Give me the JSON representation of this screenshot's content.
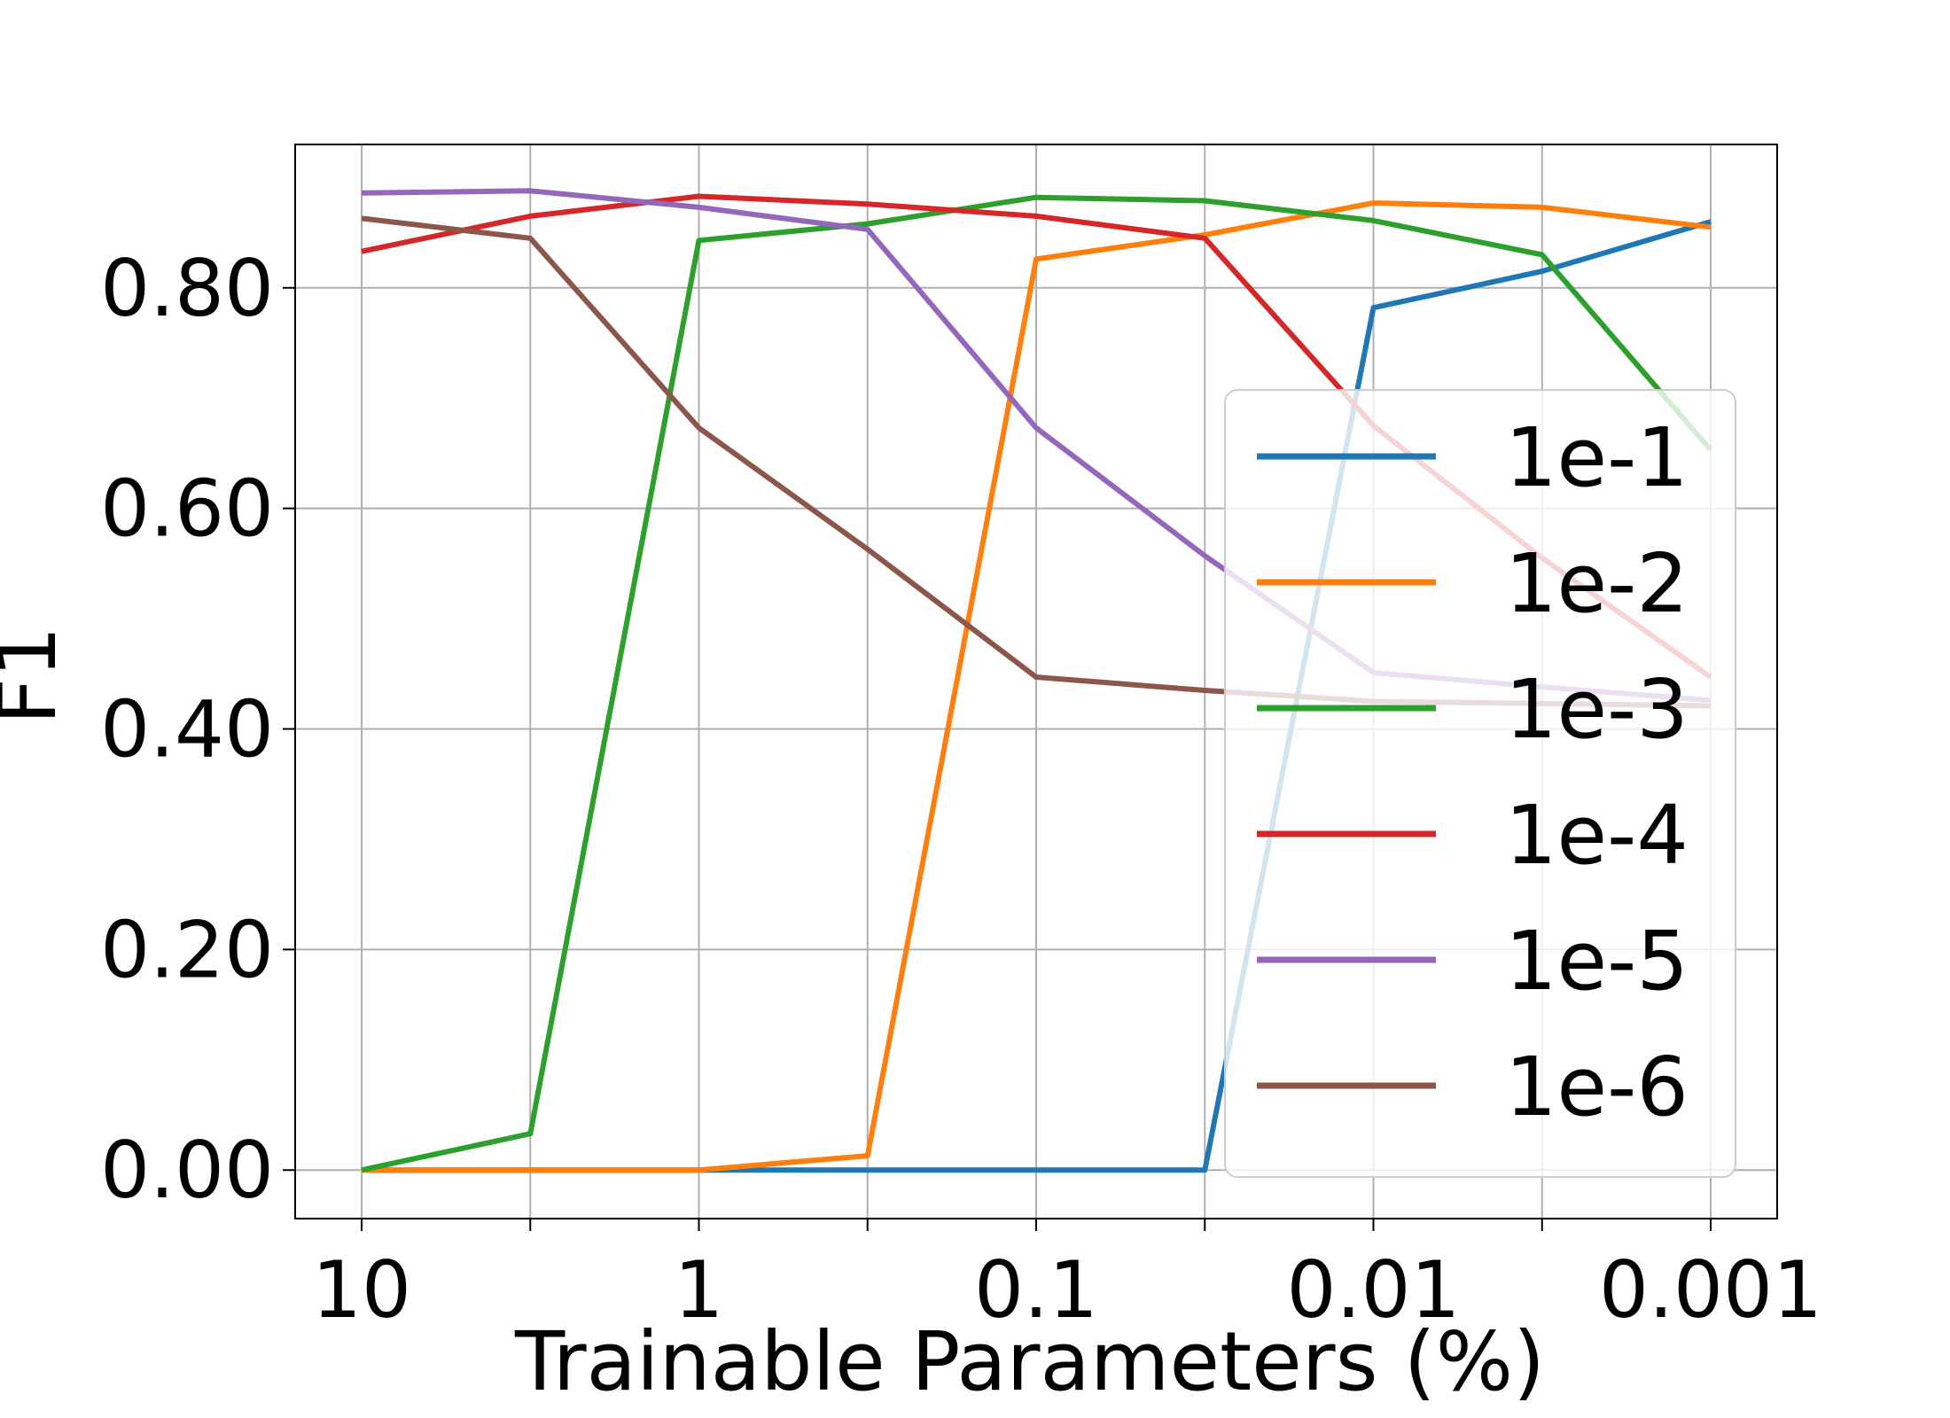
{
  "chart_data": {
    "type": "line",
    "title": "",
    "xlabel": "Trainable Parameters (%)",
    "ylabel": "F1",
    "x_scale": "log",
    "x_direction": "reversed",
    "x": [
      10,
      3.162,
      1,
      0.3162,
      0.1,
      0.03162,
      0.01,
      0.003162,
      0.001
    ],
    "x_ticks": [
      {
        "value": 10,
        "label": "10"
      },
      {
        "value": 1,
        "label": "1"
      },
      {
        "value": 0.1,
        "label": "0.1"
      },
      {
        "value": 0.01,
        "label": "0.01"
      },
      {
        "value": 0.001,
        "label": "0.001"
      }
    ],
    "x_minor_ticks": [
      3.162,
      0.3162,
      0.03162,
      0.003162
    ],
    "ylim": [
      -0.044,
      0.93
    ],
    "y_ticks": [
      {
        "value": 0.0,
        "label": "0.00"
      },
      {
        "value": 0.2,
        "label": "0.20"
      },
      {
        "value": 0.4,
        "label": "0.40"
      },
      {
        "value": 0.6,
        "label": "0.60"
      },
      {
        "value": 0.8,
        "label": "0.80"
      }
    ],
    "grid": true,
    "legend_position": "lower-right",
    "series": [
      {
        "name": "1e-1",
        "color": "#1f77b4",
        "values": [
          0.0,
          0.0,
          0.0,
          0.0,
          0.0,
          0.0,
          0.782,
          0.815,
          0.86
        ]
      },
      {
        "name": "1e-2",
        "color": "#ff7f0e",
        "values": [
          0.0,
          0.0,
          0.0,
          0.013,
          0.826,
          0.848,
          0.877,
          0.873,
          0.855
        ]
      },
      {
        "name": "1e-3",
        "color": "#2ca02c",
        "values": [
          0.0,
          0.033,
          0.843,
          0.858,
          0.882,
          0.879,
          0.861,
          0.83,
          0.653
        ]
      },
      {
        "name": "1e-4",
        "color": "#d62728",
        "values": [
          0.833,
          0.865,
          0.883,
          0.876,
          0.865,
          0.845,
          0.675,
          0.555,
          0.447
        ]
      },
      {
        "name": "1e-5",
        "color": "#9467bd",
        "values": [
          0.886,
          0.888,
          0.873,
          0.853,
          0.673,
          0.557,
          0.451,
          0.438,
          0.426
        ]
      },
      {
        "name": "1e-6",
        "color": "#8c564b",
        "values": [
          0.863,
          0.845,
          0.673,
          0.563,
          0.447,
          0.435,
          0.425,
          0.423,
          0.421
        ]
      }
    ]
  }
}
